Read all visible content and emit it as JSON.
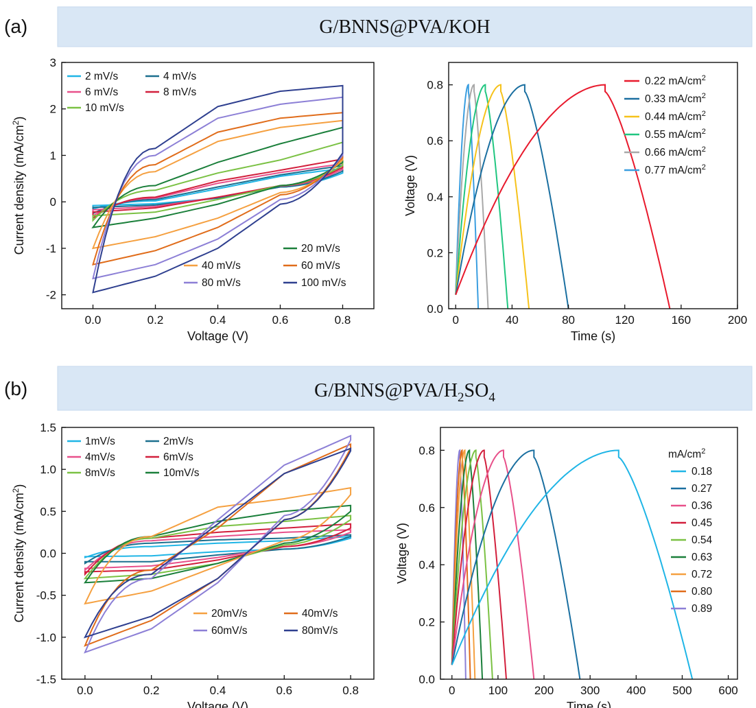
{
  "panels": [
    {
      "letter": "(a)",
      "banner": "G/BNNS@PVA/KOH"
    },
    {
      "letter": "(b)",
      "banner_parts": [
        "G/BNNS@PVA/H",
        "2",
        "SO",
        "4"
      ]
    }
  ],
  "chart_data": [
    {
      "id": "a-cv",
      "type": "line",
      "subtype": "cyclic-voltammetry",
      "title": "",
      "xlabel": "Voltage (V)",
      "ylabel": "Current density (mA/cm",
      "ylabel_sup": "2",
      "ylabel_close": ")",
      "xlim": [
        -0.1,
        0.9
      ],
      "ylim": [
        -2.3,
        3
      ],
      "xticks": [
        "0.0",
        "0.2",
        "0.4",
        "0.6",
        "0.8"
      ],
      "yticks": [
        "-2",
        "-1",
        "0",
        "1",
        "2",
        "3"
      ],
      "legend_upper": [
        "2 mV/s",
        "4 mV/s",
        "6 mV/s",
        "8 mV/s",
        "10 mV/s"
      ],
      "legend_lower": [
        "20 mV/s",
        "40 mV/s",
        "60 mV/s",
        "80 mV/s",
        "100 mV/s"
      ],
      "series": [
        {
          "name": "2 mV/s",
          "color": "#1fb5e6",
          "top": [
            -0.15,
            0.02,
            0.28,
            0.55,
            0.72
          ],
          "bottom": [
            -0.08,
            -0.04,
            0.08,
            0.32,
            0.62
          ]
        },
        {
          "name": "4 mV/s",
          "color": "#1b6f8e",
          "top": [
            -0.25,
            0.05,
            0.32,
            0.58,
            0.78
          ],
          "bottom": [
            -0.12,
            -0.07,
            0.08,
            0.32,
            0.66
          ]
        },
        {
          "name": "6 mV/s",
          "color": "#e8508a",
          "top": [
            -0.3,
            0.08,
            0.4,
            0.63,
            0.82
          ],
          "bottom": [
            -0.17,
            -0.1,
            0.1,
            0.34,
            0.7
          ]
        },
        {
          "name": "8 mV/s",
          "color": "#d21f3c",
          "top": [
            -0.35,
            0.1,
            0.45,
            0.68,
            0.92
          ],
          "bottom": [
            -0.22,
            -0.13,
            0.1,
            0.35,
            0.74
          ]
        },
        {
          "name": "10 mV/s",
          "color": "#7ac143",
          "top": [
            -0.4,
            0.25,
            0.62,
            0.9,
            1.28
          ],
          "bottom": [
            -0.3,
            -0.22,
            0.05,
            0.35,
            0.78
          ]
        },
        {
          "name": "20 mV/s",
          "color": "#1a7f3a",
          "top": [
            -0.55,
            0.35,
            0.85,
            1.25,
            1.6
          ],
          "bottom": [
            -0.55,
            -0.35,
            -0.05,
            0.35,
            0.85
          ]
        },
        {
          "name": "40 mV/s",
          "color": "#f5a040",
          "top": [
            -1.0,
            0.65,
            1.3,
            1.6,
            1.75
          ],
          "bottom": [
            -1.0,
            -0.75,
            -0.35,
            0.2,
            0.9
          ]
        },
        {
          "name": "60 mV/s",
          "color": "#e06c1a",
          "top": [
            -1.35,
            0.8,
            1.5,
            1.8,
            1.92
          ],
          "bottom": [
            -1.35,
            -1.05,
            -0.55,
            0.15,
            0.95
          ]
        },
        {
          "name": "80 mV/s",
          "color": "#8c7fd6",
          "top": [
            -1.65,
            1.0,
            1.8,
            2.1,
            2.25
          ],
          "bottom": [
            -1.65,
            -1.35,
            -0.8,
            0.05,
            1.0
          ]
        },
        {
          "name": "100 mV/s",
          "color": "#2e3f8f",
          "top": [
            -1.95,
            1.15,
            2.05,
            2.38,
            2.5
          ],
          "bottom": [
            -1.95,
            -1.6,
            -1.0,
            -0.05,
            1.05
          ]
        }
      ]
    },
    {
      "id": "a-gcd",
      "type": "line",
      "subtype": "galvanostatic-charge-discharge",
      "title": "",
      "xlabel": "Time (s)",
      "ylabel": "Voltage (V)",
      "xlim": [
        -5,
        200
      ],
      "ylim": [
        0,
        0.88
      ],
      "xticks": [
        "0",
        "40",
        "80",
        "120",
        "160",
        "200"
      ],
      "yticks": [
        "0.0",
        "0.2",
        "0.4",
        "0.6",
        "0.8"
      ],
      "vmax": 0.8,
      "legend": [
        "0.22 mA/cm",
        "0.33 mA/cm",
        "0.44 mA/cm",
        "0.55 mA/cm",
        "0.66 mA/cm",
        "0.77 mA/cm"
      ],
      "legend_sup": "2",
      "series": [
        {
          "name": "0.22 mA/cm2",
          "color": "#e8192c",
          "charge_end": 106,
          "discharge_end": 152
        },
        {
          "name": "0.33 mA/cm2",
          "color": "#1a6fa0",
          "charge_end": 49,
          "discharge_end": 80
        },
        {
          "name": "0.44 mA/cm2",
          "color": "#f6c21a",
          "charge_end": 32,
          "discharge_end": 52
        },
        {
          "name": "0.55 mA/cm2",
          "color": "#20c680",
          "charge_end": 21,
          "discharge_end": 37
        },
        {
          "name": "0.66 mA/cm2",
          "color": "#a8a8a8",
          "charge_end": 13,
          "discharge_end": 23
        },
        {
          "name": "0.77 mA/cm2",
          "color": "#3a9ee0",
          "charge_end": 9,
          "discharge_end": 16
        }
      ]
    },
    {
      "id": "b-cv",
      "type": "line",
      "subtype": "cyclic-voltammetry",
      "title": "",
      "xlabel": "Voltage (V)",
      "ylabel": "Current density (mA/cm",
      "ylabel_sup": "2",
      "ylabel_close": ")",
      "xlim": [
        -0.07,
        0.87
      ],
      "ylim": [
        -1.5,
        1.5
      ],
      "xticks": [
        "0.0",
        "0.2",
        "0.4",
        "0.6",
        "0.8"
      ],
      "yticks": [
        "-1.5",
        "-1.0",
        "-0.5",
        "0.0",
        "0.5",
        "1.0",
        "1.5"
      ],
      "legend_upper": [
        "1mV/s",
        "2mV/s",
        "4mV/s",
        "6mV/s",
        "8mV/s",
        "10mV/s"
      ],
      "legend_lower": [
        "20mV/s",
        "40mV/s",
        "60mV/s",
        "80mV/s"
      ],
      "series": [
        {
          "name": "1mV/s",
          "color": "#1fb5e6",
          "top": [
            -0.05,
            0.08,
            0.12,
            0.15,
            0.2
          ],
          "bottom": [
            -0.04,
            -0.03,
            0.02,
            0.05,
            0.18
          ]
        },
        {
          "name": "2mV/s",
          "color": "#1b6f8e",
          "top": [
            -0.12,
            0.12,
            0.16,
            0.18,
            0.22
          ],
          "bottom": [
            -0.1,
            -0.1,
            -0.02,
            0.05,
            0.2
          ]
        },
        {
          "name": "4mV/s",
          "color": "#e8508a",
          "top": [
            -0.2,
            0.15,
            0.2,
            0.25,
            0.28
          ],
          "bottom": [
            -0.18,
            -0.15,
            -0.05,
            0.08,
            0.25
          ]
        },
        {
          "name": "6mV/s",
          "color": "#d21f3c",
          "top": [
            -0.25,
            0.18,
            0.25,
            0.3,
            0.35
          ],
          "bottom": [
            -0.22,
            -0.2,
            -0.08,
            0.08,
            0.3
          ]
        },
        {
          "name": "8mV/s",
          "color": "#7ac143",
          "top": [
            -0.3,
            0.18,
            0.32,
            0.38,
            0.45
          ],
          "bottom": [
            -0.3,
            -0.25,
            -0.12,
            0.1,
            0.4
          ]
        },
        {
          "name": "10mV/s",
          "color": "#1a7f3a",
          "top": [
            -0.35,
            0.2,
            0.38,
            0.5,
            0.57
          ],
          "bottom": [
            -0.35,
            -0.3,
            -0.12,
            0.12,
            0.5
          ]
        },
        {
          "name": "20mV/s",
          "color": "#f5a040",
          "top": [
            -0.6,
            0.2,
            0.55,
            0.65,
            0.78
          ],
          "bottom": [
            -0.6,
            -0.45,
            -0.15,
            0.15,
            0.7
          ]
        },
        {
          "name": "40mV/s",
          "color": "#e06c1a",
          "top": [
            -1.1,
            -0.2,
            0.3,
            0.95,
            1.3
          ],
          "bottom": [
            -1.1,
            -0.8,
            -0.3,
            0.4,
            1.25
          ]
        },
        {
          "name": "60mV/s",
          "color": "#8c7fd6",
          "top": [
            -1.18,
            -0.3,
            0.4,
            1.05,
            1.4
          ],
          "bottom": [
            -1.18,
            -0.9,
            -0.35,
            0.45,
            1.35
          ]
        },
        {
          "name": "80mV/s",
          "color": "#2e3f8f",
          "top": [
            -1.0,
            -0.25,
            0.35,
            0.95,
            1.25
          ],
          "bottom": [
            -1.0,
            -0.75,
            -0.3,
            0.4,
            1.22
          ]
        }
      ]
    },
    {
      "id": "b-gcd",
      "type": "line",
      "subtype": "galvanostatic-charge-discharge",
      "title": "",
      "xlabel": "Time (s)",
      "ylabel": "Voltage (V)",
      "xlim": [
        -25,
        620
      ],
      "ylim": [
        0,
        0.88
      ],
      "xticks": [
        "0",
        "100",
        "200",
        "300",
        "400",
        "500",
        "600"
      ],
      "yticks": [
        "0.0",
        "0.2",
        "0.4",
        "0.6",
        "0.8"
      ],
      "vmax": 0.8,
      "legend_title": "mA/cm",
      "legend_title_sup": "2",
      "legend": [
        "0.18",
        "0.27",
        "0.36",
        "0.45",
        "0.54",
        "0.63",
        "0.72",
        "0.80",
        "0.89"
      ],
      "series": [
        {
          "name": "0.18",
          "color": "#1fb5e6",
          "charge_end": 362,
          "discharge_end": 522
        },
        {
          "name": "0.27",
          "color": "#1a6fa0",
          "charge_end": 178,
          "discharge_end": 278
        },
        {
          "name": "0.36",
          "color": "#e8508a",
          "charge_end": 112,
          "discharge_end": 178
        },
        {
          "name": "0.45",
          "color": "#d21f3c",
          "charge_end": 70,
          "discharge_end": 118
        },
        {
          "name": "0.54",
          "color": "#7ac143",
          "charge_end": 52,
          "discharge_end": 88
        },
        {
          "name": "0.63",
          "color": "#1a7f3a",
          "charge_end": 38,
          "discharge_end": 66
        },
        {
          "name": "0.72",
          "color": "#f5a040",
          "charge_end": 28,
          "discharge_end": 50
        },
        {
          "name": "0.80",
          "color": "#e06c1a",
          "charge_end": 22,
          "discharge_end": 40
        },
        {
          "name": "0.89",
          "color": "#8c7fd6",
          "charge_end": 17,
          "discharge_end": 30
        }
      ]
    }
  ]
}
